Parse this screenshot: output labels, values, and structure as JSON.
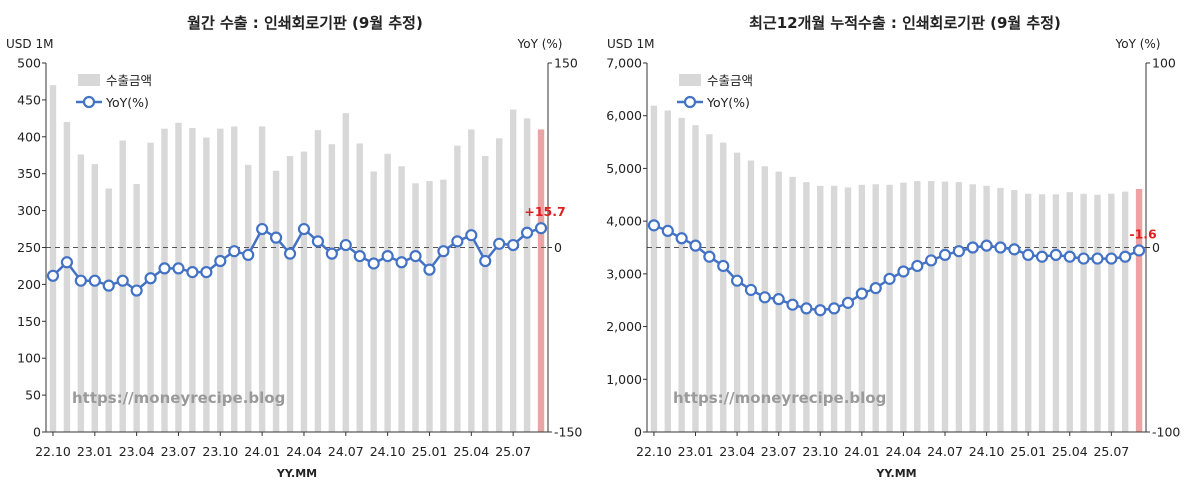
{
  "chart_data": [
    {
      "type": "bar",
      "title": "월간 수출 : 인쇄회로기판 (9월 추정)",
      "y_unit": "USD 1M",
      "y2_unit": "YoY (%)",
      "xlabel": "YY.MM",
      "ylim": [
        0,
        500
      ],
      "y_ticks": [
        0,
        50,
        100,
        150,
        200,
        250,
        300,
        350,
        400,
        450,
        500
      ],
      "y_tick_labels": [
        "0",
        "50",
        "100",
        "150",
        "200",
        "250",
        "300",
        "350",
        "400",
        "450",
        "500"
      ],
      "y2lim": [
        -150,
        150
      ],
      "y2_ticks": [
        -150,
        0,
        150
      ],
      "y2_tick_labels": [
        "-150",
        "0",
        "150"
      ],
      "reference_line_y2": 0,
      "x_tick_labels": [
        "22.10",
        "23.01",
        "23.04",
        "23.07",
        "23.10",
        "24.01",
        "24.04",
        "24.07",
        "24.10",
        "25.01",
        "25.04",
        "25.07"
      ],
      "legend": [
        "수출금액",
        "YoY(%)"
      ],
      "watermark": "https://moneyrecipe.blog",
      "bar_color": "#d8d8d8",
      "highlight_color": "#eba3a3",
      "line_color": "#4472c4",
      "annotation": "+15.7",
      "bars": [
        470,
        420,
        376,
        363,
        330,
        395,
        336,
        392,
        411,
        419,
        412,
        399,
        411,
        414,
        362,
        414,
        354,
        374,
        380,
        409,
        390,
        432,
        391,
        353,
        377,
        360,
        337,
        340,
        342,
        388,
        410,
        374,
        398,
        437,
        425,
        410
      ],
      "yoy": [
        -23,
        -12,
        -27,
        -27,
        -31,
        -27,
        -35,
        -25,
        -17,
        -17,
        -20,
        -20,
        -11,
        -3,
        -6,
        15,
        8,
        -5,
        15,
        5,
        -5,
        2,
        -7,
        -13,
        -7,
        -12,
        -7,
        -18,
        -3,
        5,
        10,
        -11,
        3,
        2,
        12,
        15.7
      ]
    },
    {
      "type": "bar",
      "title": "최근12개월 누적수출 : 인쇄회로기판 (9월 추정)",
      "y_unit": "USD 1M",
      "y2_unit": "YoY (%)",
      "xlabel": "YY.MM",
      "ylim": [
        0,
        7000
      ],
      "y_ticks": [
        0,
        1000,
        2000,
        3000,
        4000,
        5000,
        6000,
        7000
      ],
      "y_tick_labels": [
        "0",
        "1,000",
        "2,000",
        "3,000",
        "4,000",
        "5,000",
        "6,000",
        "7,000"
      ],
      "y2lim": [
        -100,
        100
      ],
      "y2_ticks": [
        -100,
        0,
        100
      ],
      "y2_tick_labels": [
        "-100",
        "0",
        "100"
      ],
      "reference_line_y2": 0,
      "x_tick_labels": [
        "22.10",
        "23.01",
        "23.04",
        "23.07",
        "23.10",
        "24.01",
        "24.04",
        "24.07",
        "24.10",
        "25.01",
        "25.04",
        "25.07"
      ],
      "legend": [
        "수출금액",
        "YoY(%)"
      ],
      "watermark": "https://moneyrecipe.blog",
      "bar_color": "#d8d8d8",
      "highlight_color": "#eba3a3",
      "line_color": "#4472c4",
      "annotation": "-1.6",
      "bars": [
        6190,
        6100,
        5960,
        5820,
        5650,
        5490,
        5300,
        5150,
        5040,
        4940,
        4840,
        4740,
        4670,
        4670,
        4640,
        4690,
        4700,
        4690,
        4730,
        4760,
        4760,
        4750,
        4740,
        4700,
        4670,
        4630,
        4590,
        4520,
        4510,
        4510,
        4550,
        4520,
        4500,
        4520,
        4560,
        4610
      ],
      "yoy": [
        12,
        9,
        5,
        1,
        -5,
        -10,
        -18,
        -23,
        -27,
        -28,
        -31,
        -33,
        -34,
        -33,
        -30,
        -25,
        -22,
        -17,
        -13,
        -10,
        -7,
        -4,
        -2,
        0,
        1,
        0,
        -1,
        -4,
        -5,
        -4,
        -5,
        -6,
        -6,
        -6,
        -5,
        -1.6
      ]
    }
  ]
}
